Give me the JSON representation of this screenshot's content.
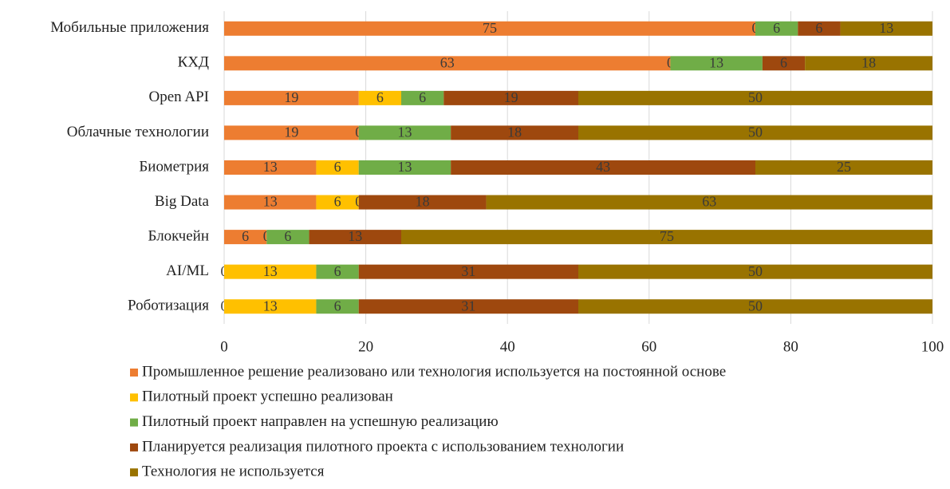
{
  "chart_data": {
    "type": "stacked_barh",
    "categories": [
      "Мобильные приложения",
      "КХД",
      "Open API",
      "Облачные технологии",
      "Биометрия",
      "Big Data",
      "Блокчейн",
      "AI/ML",
      "Роботизация"
    ],
    "series": [
      {
        "name": "Промышленное решение реализовано или технология используется на постоянной основе",
        "color": "#ED7D31",
        "values": [
          75,
          63,
          19,
          19,
          13,
          13,
          6,
          0,
          0
        ]
      },
      {
        "name": "Пилотный проект успешно реализован",
        "color": "#FFC000",
        "values": [
          0,
          0,
          6,
          0,
          6,
          6,
          0,
          13,
          13
        ]
      },
      {
        "name": "Пилотный проект направлен на успешную реализацию",
        "color": "#70AD47",
        "values": [
          6,
          13,
          6,
          13,
          13,
          0,
          6,
          6,
          6
        ]
      },
      {
        "name": "Планируется реализация пилотного проекта с использованием технологии",
        "color": "#9E480E",
        "values": [
          6,
          6,
          19,
          18,
          43,
          18,
          13,
          31,
          31
        ]
      },
      {
        "name": "Технология не используется",
        "color": "#997300",
        "values": [
          13,
          18,
          50,
          50,
          25,
          63,
          75,
          50,
          50
        ]
      }
    ],
    "xlim": [
      0,
      100
    ],
    "xticks": [
      0,
      20,
      40,
      60,
      80,
      100
    ],
    "grid": true,
    "legend": "bottom"
  }
}
